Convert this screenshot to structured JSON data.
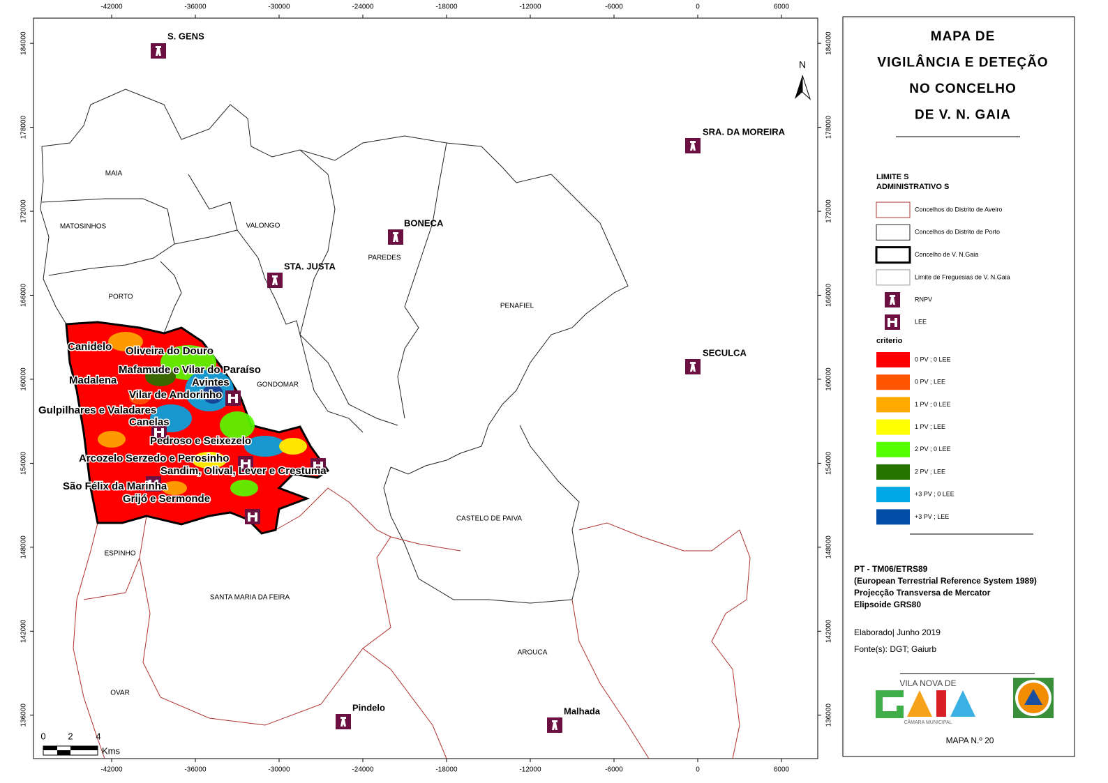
{
  "map": {
    "x_ticks": [
      -42000,
      -36000,
      -30000,
      -24000,
      -18000,
      -12000,
      -6000,
      0,
      6000
    ],
    "y_ticks": [
      184000,
      178000,
      172000,
      166000,
      160000,
      154000,
      148000,
      142000,
      136000
    ],
    "xlim": [
      -47600,
      8600
    ],
    "ylim": [
      132900,
      185800
    ],
    "north": "N",
    "municipalities": [
      "MAIA",
      "MATOSINHOS",
      "VALONGO",
      "PAREDES",
      "PORTO",
      "PENAFIEL",
      "GONDOMAR",
      "CASTELO DE PAIVA",
      "ESPINHO",
      "SANTA MARIA DA FEIRA",
      "AROUCA",
      "OVAR"
    ],
    "stations": [
      "S. GENS",
      "SRA. DA MOREIRA",
      "BONECA",
      "STA. JUSTA",
      "SECULCA",
      "Pindelo",
      "Malhada"
    ],
    "parishes": [
      "Canidelo",
      "Oliveira do Douro",
      "Mafamude e Vilar do Paraíso",
      "Madalena",
      "Avintes",
      "Vilar de Andorinho",
      "Gulpilhares e Valadares",
      "Canelas",
      "Pedroso e Seixezelo",
      "Arcozelo",
      "Serzedo e Perosinho",
      "Sandim, Olival, Lever e Crestuma",
      "São Félix da Marinha",
      "Grijó e Sermonde"
    ],
    "scale": {
      "labels": [
        "0",
        "2",
        "4"
      ],
      "unit": "Kms"
    }
  },
  "legend": {
    "title": [
      "MAPA DE",
      "VIGILÂNCIA E DETEÇÃO",
      "NO CONCELHO",
      "DE V. N. GAIA"
    ],
    "section": [
      "LIMITE S",
      "ADMINISTRATIVO S"
    ],
    "boundaries": [
      {
        "label": "Concelhos do Distrito de Aveiro",
        "stroke": "#b03030"
      },
      {
        "label": "Concelhos do Distrito de Porto",
        "stroke": "#222222"
      },
      {
        "label": "Concelho de V. N.Gaia",
        "stroke": "#000000"
      },
      {
        "label": "Limite de Freguesias de V. N.Gaia",
        "stroke": "#999999"
      }
    ],
    "symbols": [
      "RNPV",
      "LEE"
    ],
    "criteria_title": "criterio",
    "criteria": [
      {
        "label": "0 PV ; 0 LEE",
        "color": "#ff0000"
      },
      {
        "label": "0 PV ; LEE",
        "color": "#ff5500"
      },
      {
        "label": "1 PV ; 0 LEE",
        "color": "#ffaa00"
      },
      {
        "label": "1 PV ; LEE",
        "color": "#ffff00"
      },
      {
        "label": "2 PV ; 0 LEE",
        "color": "#55ff00"
      },
      {
        "label": "2 PV ; LEE",
        "color": "#267300"
      },
      {
        "label": "+3 PV ; 0 LEE",
        "color": "#00a9e6"
      },
      {
        "label": "+3 PV ; LEE",
        "color": "#004da8"
      }
    ]
  },
  "info": {
    "projection": [
      "PT - TM06/ETRS89",
      "(European Terrestrial Reference System 1989)",
      "Projecção Transversa de Mercator",
      "Elipsoide GRS80"
    ],
    "elaborated": "Elaborado| Junho 2019",
    "sources": "Fonte(s): DGT; Gaiurb",
    "logo": [
      "VILA NOVA DE",
      "GAIA",
      "CÂMARA MUNICIPAL"
    ],
    "map_number": "MAPA N.º 20"
  }
}
